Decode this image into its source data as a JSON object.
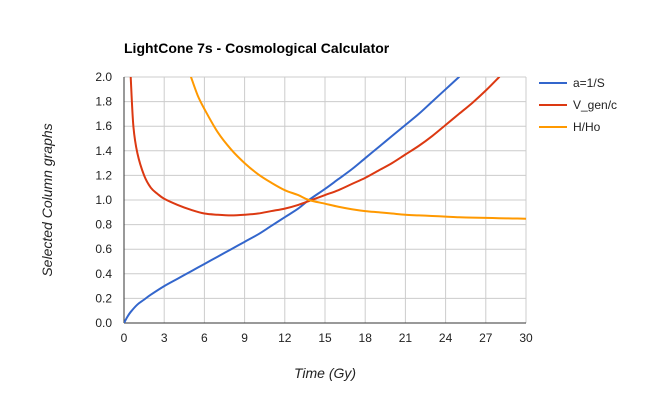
{
  "chart_data": {
    "type": "line",
    "title": "LightCone 7s - Cosmological Calculator",
    "xlabel": "Time (Gy)",
    "ylabel": "Selected Column graphs",
    "xlim": [
      0,
      30
    ],
    "ylim": [
      0,
      2.0
    ],
    "x_ticks": [
      0,
      3,
      6,
      9,
      12,
      15,
      18,
      21,
      24,
      27,
      30
    ],
    "y_ticks": [
      0.0,
      0.2,
      0.4,
      0.6,
      0.8,
      1.0,
      1.2,
      1.4,
      1.6,
      1.8,
      2.0
    ],
    "x_tick_labels": [
      "0",
      "3",
      "6",
      "9",
      "12",
      "15",
      "18",
      "21",
      "24",
      "27",
      "30"
    ],
    "y_tick_labels": [
      "0.0",
      "0.2",
      "0.4",
      "0.6",
      "0.8",
      "1.0",
      "1.2",
      "1.4",
      "1.6",
      "1.8",
      "2.0"
    ],
    "grid": true,
    "legend_position": "right",
    "series": [
      {
        "name": "a=1/S",
        "color": "#3366cc",
        "x": [
          0,
          0.25,
          0.5,
          1,
          1.5,
          2,
          3,
          4,
          5,
          6,
          7,
          8,
          9,
          10,
          11,
          12,
          13,
          13.8,
          15,
          16,
          17,
          18,
          19,
          20,
          21,
          22,
          23,
          24,
          25
        ],
        "y": [
          0,
          0.05,
          0.09,
          0.15,
          0.19,
          0.23,
          0.3,
          0.36,
          0.42,
          0.48,
          0.54,
          0.6,
          0.66,
          0.72,
          0.79,
          0.86,
          0.93,
          1.0,
          1.09,
          1.17,
          1.25,
          1.34,
          1.43,
          1.52,
          1.61,
          1.7,
          1.8,
          1.9,
          2.0
        ]
      },
      {
        "name": "V_gen/c",
        "color": "#dc3912",
        "x": [
          0.5,
          0.7,
          1,
          1.5,
          2,
          2.5,
          3,
          4,
          5,
          6,
          7,
          8,
          9,
          10,
          11,
          12,
          13,
          14,
          15,
          16,
          17,
          18,
          19,
          20,
          21,
          22,
          23,
          24,
          25,
          26,
          27,
          28
        ],
        "y": [
          2.0,
          1.6,
          1.38,
          1.2,
          1.1,
          1.05,
          1.01,
          0.96,
          0.92,
          0.89,
          0.88,
          0.875,
          0.88,
          0.89,
          0.91,
          0.93,
          0.96,
          1.0,
          1.04,
          1.08,
          1.13,
          1.18,
          1.24,
          1.3,
          1.37,
          1.44,
          1.52,
          1.61,
          1.7,
          1.79,
          1.89,
          2.0
        ]
      },
      {
        "name": "H/Ho",
        "color": "#ff9900",
        "x": [
          5,
          5.5,
          6,
          7,
          8,
          9,
          10,
          11,
          12,
          13,
          13.8,
          15,
          16,
          17,
          18,
          19,
          20,
          21,
          22,
          23,
          24,
          25,
          26,
          27,
          28,
          29,
          30
        ],
        "y": [
          2.0,
          1.85,
          1.74,
          1.55,
          1.41,
          1.3,
          1.21,
          1.14,
          1.08,
          1.04,
          1.0,
          0.97,
          0.945,
          0.925,
          0.91,
          0.9,
          0.89,
          0.88,
          0.875,
          0.87,
          0.865,
          0.86,
          0.857,
          0.855,
          0.852,
          0.85,
          0.848
        ]
      }
    ]
  }
}
